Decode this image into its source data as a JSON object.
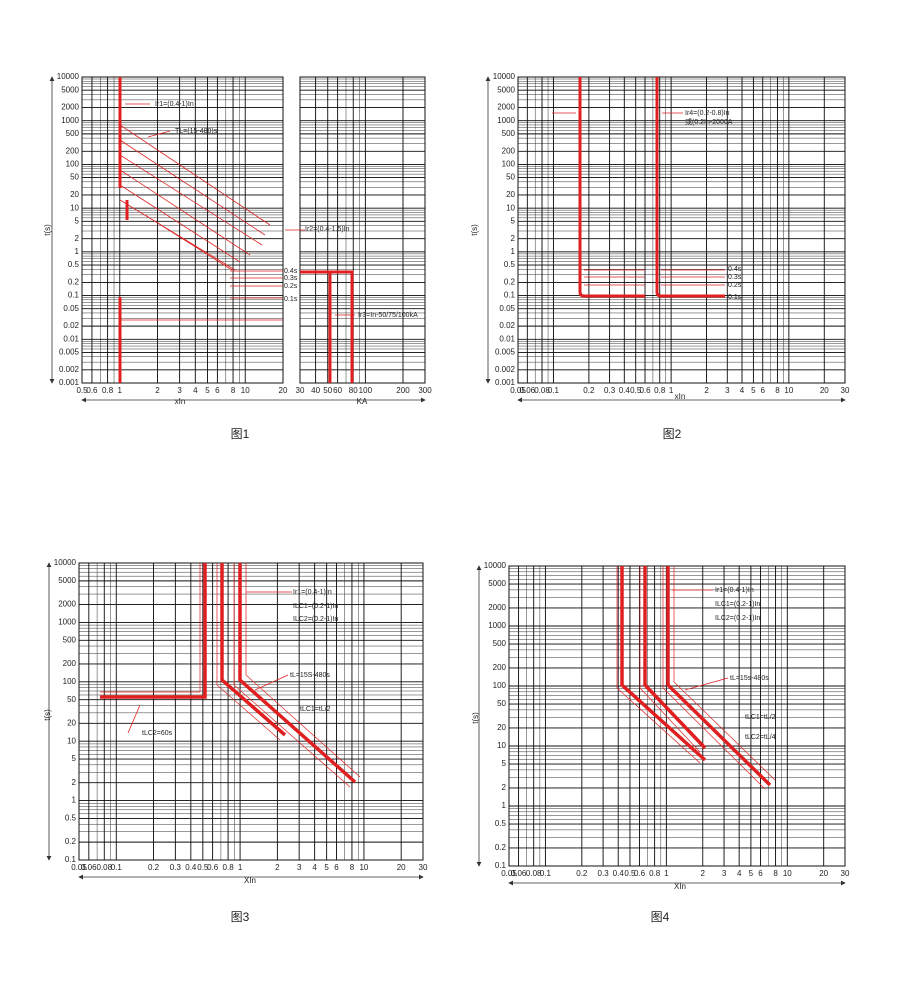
{
  "figures": [
    {
      "caption": "图1",
      "y_label": "t(s)",
      "x_label": "xIn",
      "x2_label": "KA",
      "ylim": [
        0.001,
        10000
      ],
      "xlim": [
        0.5,
        20
      ],
      "x2lim": [
        30,
        300
      ],
      "yticks": [
        10000,
        5000,
        2000,
        1000,
        500,
        200,
        100,
        50,
        20,
        10,
        5,
        2,
        1,
        0.5,
        0.2,
        0.1,
        0.05,
        0.02,
        0.01,
        0.005,
        0.002,
        0.001
      ],
      "xticks": [
        0.5,
        0.6,
        0.8,
        1,
        2,
        3,
        4,
        5,
        6,
        8,
        10,
        20
      ],
      "x2ticks": [
        30,
        40,
        50,
        60,
        80,
        100,
        200,
        300
      ],
      "annotations": [
        "Ir1=(0.4-1)In",
        "TL=(15-480)s",
        "Ir2=(0.4-1.5)In",
        "0.4s",
        "0.3s",
        "0.2s",
        "0.1s",
        "Ir3=In-50/75/100kA"
      ]
    },
    {
      "caption": "图2",
      "y_label": "t(s)",
      "x_label": "xIn",
      "ylim": [
        0.001,
        10000
      ],
      "xlim": [
        0.05,
        30
      ],
      "yticks": [
        10000,
        5000,
        2000,
        1000,
        500,
        200,
        100,
        50,
        20,
        10,
        5,
        2,
        1,
        0.5,
        0.2,
        0.1,
        0.05,
        0.02,
        0.01,
        0.005,
        0.002,
        0.001
      ],
      "xticks": [
        0.05,
        0.06,
        0.08,
        0.1,
        0.2,
        0.3,
        0.4,
        0.5,
        0.6,
        0.8,
        1,
        2,
        3,
        4,
        5,
        6,
        8,
        10,
        20,
        30
      ],
      "annotations": [
        "Ir4=(0.2-0.8)In",
        "或(0.2In-2000A",
        "0.4s",
        "0.3s",
        "0.2s",
        "0.1s"
      ]
    },
    {
      "caption": "图3",
      "y_label": "t(s)",
      "x_label": "XIn",
      "ylim": [
        0.1,
        10000
      ],
      "xlim": [
        0.05,
        30
      ],
      "yticks": [
        10000,
        5000,
        2000,
        1000,
        500,
        200,
        100,
        50,
        20,
        10,
        5,
        2,
        1,
        0.5,
        0.2,
        0.1
      ],
      "xticks": [
        0.05,
        0.06,
        0.08,
        0.1,
        0.2,
        0.3,
        0.4,
        0.5,
        0.6,
        0.8,
        1,
        2,
        3,
        4,
        5,
        6,
        8,
        10,
        20,
        30
      ],
      "annotations": [
        "Ir1=(0.4-1)In",
        "ILC1=(0.2-1)In",
        "ILC2=(0.2-1)In",
        "tL=15S-480s",
        "tLC1=tL/2",
        "tLC2=60s"
      ]
    },
    {
      "caption": "图4",
      "y_label": "t(s)",
      "x_label": "XIn",
      "ylim": [
        0.1,
        10000
      ],
      "xlim": [
        0.05,
        30
      ],
      "yticks": [
        10000,
        5000,
        2000,
        1000,
        500,
        200,
        100,
        50,
        20,
        10,
        5,
        2,
        1,
        0.5,
        0.2,
        0.1
      ],
      "xticks": [
        0.05,
        0.06,
        0.08,
        0.1,
        0.2,
        0.3,
        0.4,
        0.5,
        0.6,
        0.8,
        1,
        2,
        3,
        4,
        5,
        6,
        8,
        10,
        20,
        30
      ],
      "annotations": [
        "Ir1=(0.4-1)In",
        "ILC1=(0.2-1)In",
        "ILC2=(0.2-1)In",
        "tL=15s-480s",
        "tLC1=tL/2",
        "tLC2=tL/4"
      ]
    }
  ]
}
